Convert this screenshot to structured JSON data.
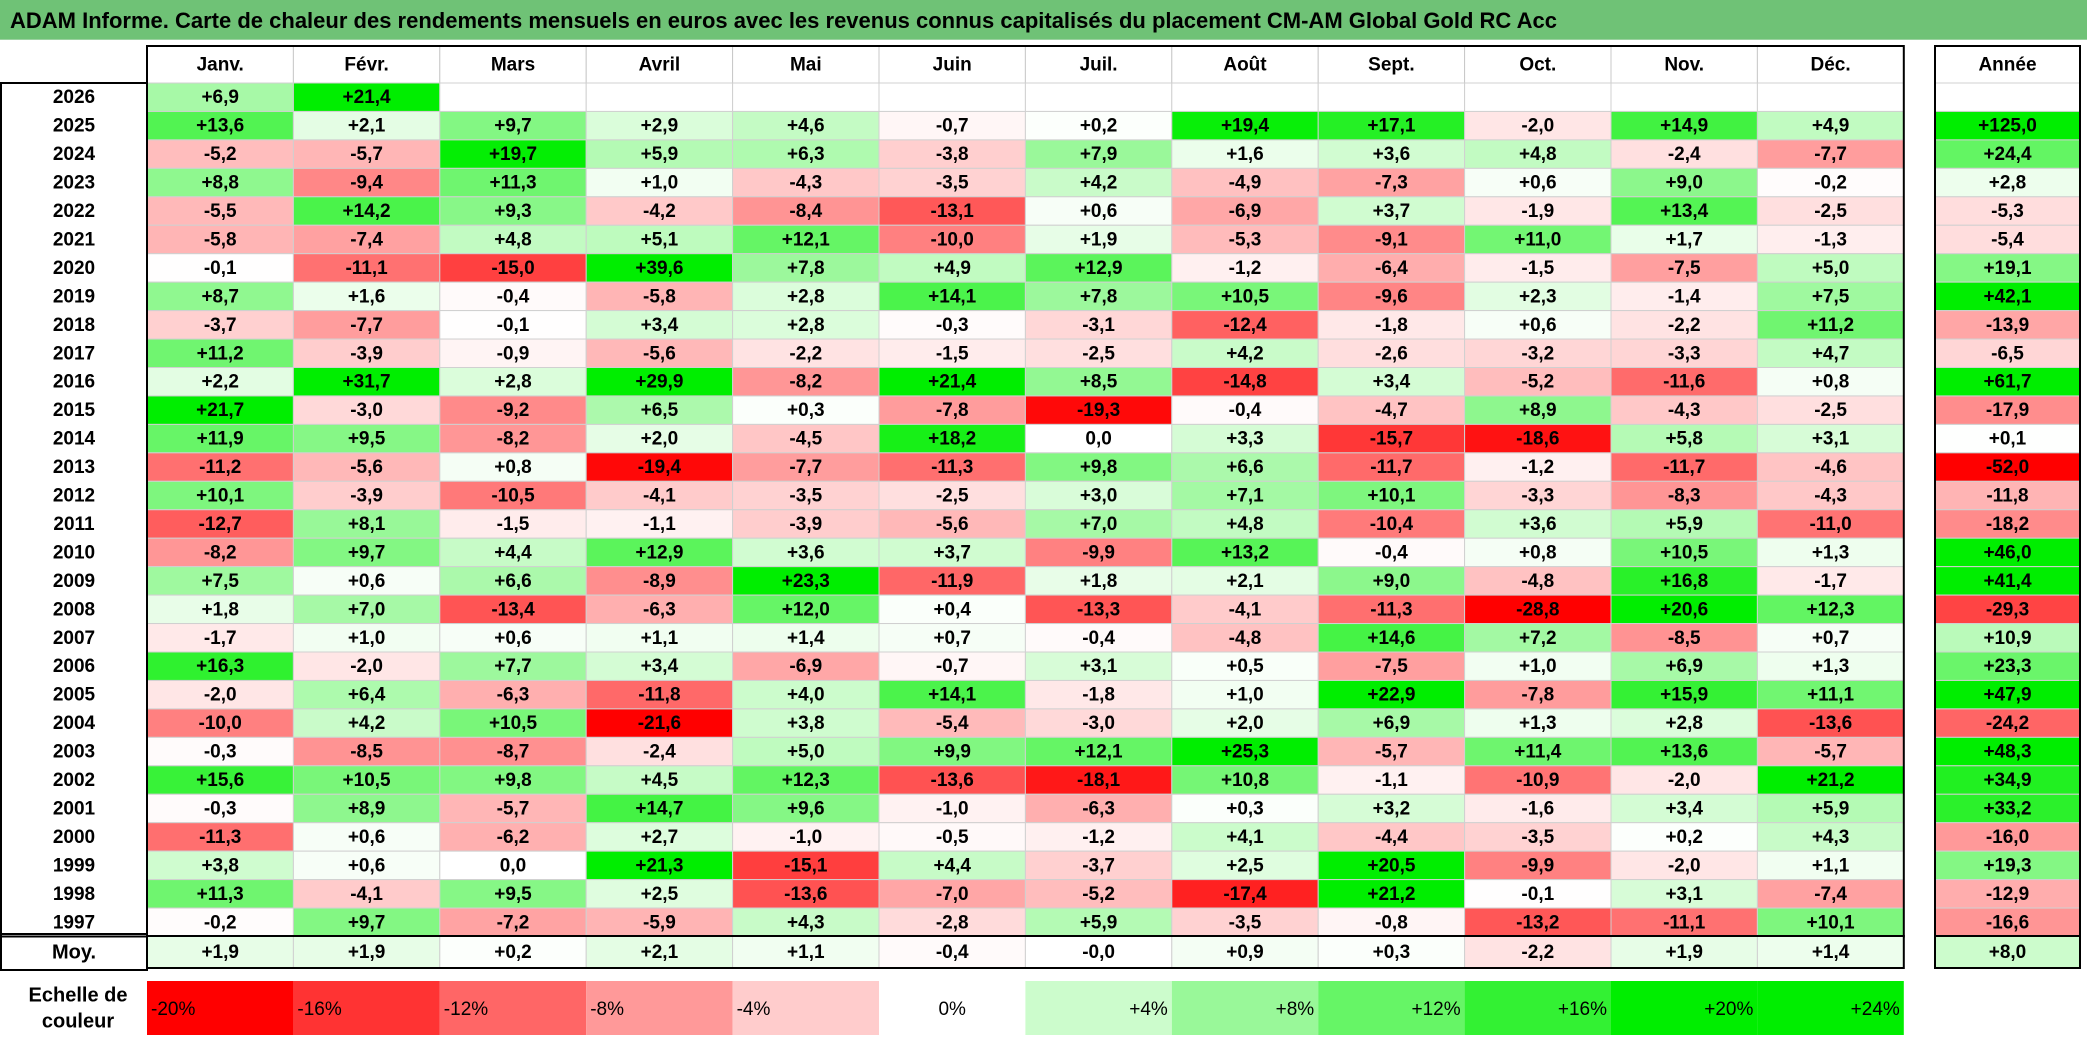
{
  "title": "ADAM Informe. Carte de chaleur des rendements mensuels en euros avec les revenus connus capitalisés du placement CM-AM Global Gold RC Acc",
  "chart_data": {
    "type": "heatmap",
    "months": [
      "Janv.",
      "Févr.",
      "Mars",
      "Avril",
      "Mai",
      "Juin",
      "Juil.",
      "Août",
      "Sept.",
      "Oct.",
      "Nov.",
      "Déc."
    ],
    "year_header": "Année",
    "rows": [
      {
        "year": "2026",
        "values": [
          "+6,9",
          "+21,4",
          "",
          "",
          "",
          "",
          "",
          "",
          "",
          "",
          "",
          ""
        ],
        "annual": ""
      },
      {
        "year": "2025",
        "values": [
          "+13,6",
          "+2,1",
          "+9,7",
          "+2,9",
          "+4,6",
          "-0,7",
          "+0,2",
          "+19,4",
          "+17,1",
          "-2,0",
          "+14,9",
          "+4,9"
        ],
        "annual": "+125,0"
      },
      {
        "year": "2024",
        "values": [
          "-5,2",
          "-5,7",
          "+19,7",
          "+5,9",
          "+6,3",
          "-3,8",
          "+7,9",
          "+1,6",
          "+3,6",
          "+4,8",
          "-2,4",
          "-7,7"
        ],
        "annual": "+24,4"
      },
      {
        "year": "2023",
        "values": [
          "+8,8",
          "-9,4",
          "+11,3",
          "+1,0",
          "-4,3",
          "-3,5",
          "+4,2",
          "-4,9",
          "-7,3",
          "+0,6",
          "+9,0",
          "-0,2"
        ],
        "annual": "+2,8"
      },
      {
        "year": "2022",
        "values": [
          "-5,5",
          "+14,2",
          "+9,3",
          "-4,2",
          "-8,4",
          "-13,1",
          "+0,6",
          "-6,9",
          "+3,7",
          "-1,9",
          "+13,4",
          "-2,5"
        ],
        "annual": "-5,3"
      },
      {
        "year": "2021",
        "values": [
          "-5,8",
          "-7,4",
          "+4,8",
          "+5,1",
          "+12,1",
          "-10,0",
          "+1,9",
          "-5,3",
          "-9,1",
          "+11,0",
          "+1,7",
          "-1,3"
        ],
        "annual": "-5,4"
      },
      {
        "year": "2020",
        "values": [
          "-0,1",
          "-11,1",
          "-15,0",
          "+39,6",
          "+7,8",
          "+4,9",
          "+12,9",
          "-1,2",
          "-6,4",
          "-1,5",
          "-7,5",
          "+5,0"
        ],
        "annual": "+19,1"
      },
      {
        "year": "2019",
        "values": [
          "+8,7",
          "+1,6",
          "-0,4",
          "-5,8",
          "+2,8",
          "+14,1",
          "+7,8",
          "+10,5",
          "-9,6",
          "+2,3",
          "-1,4",
          "+7,5"
        ],
        "annual": "+42,1"
      },
      {
        "year": "2018",
        "values": [
          "-3,7",
          "-7,7",
          "-0,1",
          "+3,4",
          "+2,8",
          "-0,3",
          "-3,1",
          "-12,4",
          "-1,8",
          "+0,6",
          "-2,2",
          "+11,2"
        ],
        "annual": "-13,9"
      },
      {
        "year": "2017",
        "values": [
          "+11,2",
          "-3,9",
          "-0,9",
          "-5,6",
          "-2,2",
          "-1,5",
          "-2,5",
          "+4,2",
          "-2,6",
          "-3,2",
          "-3,3",
          "+4,7"
        ],
        "annual": "-6,5"
      },
      {
        "year": "2016",
        "values": [
          "+2,2",
          "+31,7",
          "+2,8",
          "+29,9",
          "-8,2",
          "+21,4",
          "+8,5",
          "-14,8",
          "+3,4",
          "-5,2",
          "-11,6",
          "+0,8"
        ],
        "annual": "+61,7"
      },
      {
        "year": "2015",
        "values": [
          "+21,7",
          "-3,0",
          "-9,2",
          "+6,5",
          "+0,3",
          "-7,8",
          "-19,3",
          "-0,4",
          "-4,7",
          "+8,9",
          "-4,3",
          "-2,5"
        ],
        "annual": "-17,9"
      },
      {
        "year": "2014",
        "values": [
          "+11,9",
          "+9,5",
          "-8,2",
          "+2,0",
          "-4,5",
          "+18,2",
          "0,0",
          "+3,3",
          "-15,7",
          "-18,6",
          "+5,8",
          "+3,1"
        ],
        "annual": "+0,1"
      },
      {
        "year": "2013",
        "values": [
          "-11,2",
          "-5,6",
          "+0,8",
          "-19,4",
          "-7,7",
          "-11,3",
          "+9,8",
          "+6,6",
          "-11,7",
          "-1,2",
          "-11,7",
          "-4,6"
        ],
        "annual": "-52,0"
      },
      {
        "year": "2012",
        "values": [
          "+10,1",
          "-3,9",
          "-10,5",
          "-4,1",
          "-3,5",
          "-2,5",
          "+3,0",
          "+7,1",
          "+10,1",
          "-3,3",
          "-8,3",
          "-4,3"
        ],
        "annual": "-11,8"
      },
      {
        "year": "2011",
        "values": [
          "-12,7",
          "+8,1",
          "-1,5",
          "-1,1",
          "-3,9",
          "-5,6",
          "+7,0",
          "+4,8",
          "-10,4",
          "+3,6",
          "+5,9",
          "-11,0"
        ],
        "annual": "-18,2"
      },
      {
        "year": "2010",
        "values": [
          "-8,2",
          "+9,7",
          "+4,4",
          "+12,9",
          "+3,6",
          "+3,7",
          "-9,9",
          "+13,2",
          "-0,4",
          "+0,8",
          "+10,5",
          "+1,3"
        ],
        "annual": "+46,0"
      },
      {
        "year": "2009",
        "values": [
          "+7,5",
          "+0,6",
          "+6,6",
          "-8,9",
          "+23,3",
          "-11,9",
          "+1,8",
          "+2,1",
          "+9,0",
          "-4,8",
          "+16,8",
          "-1,7"
        ],
        "annual": "+41,4"
      },
      {
        "year": "2008",
        "values": [
          "+1,8",
          "+7,0",
          "-13,4",
          "-6,3",
          "+12,0",
          "+0,4",
          "-13,3",
          "-4,1",
          "-11,3",
          "-28,8",
          "+20,6",
          "+12,3"
        ],
        "annual": "-29,3"
      },
      {
        "year": "2007",
        "values": [
          "-1,7",
          "+1,0",
          "+0,6",
          "+1,1",
          "+1,4",
          "+0,7",
          "-0,4",
          "-4,8",
          "+14,6",
          "+7,2",
          "-8,5",
          "+0,7"
        ],
        "annual": "+10,9"
      },
      {
        "year": "2006",
        "values": [
          "+16,3",
          "-2,0",
          "+7,7",
          "+3,4",
          "-6,9",
          "-0,7",
          "+3,1",
          "+0,5",
          "-7,5",
          "+1,0",
          "+6,9",
          "+1,3"
        ],
        "annual": "+23,3"
      },
      {
        "year": "2005",
        "values": [
          "-2,0",
          "+6,4",
          "-6,3",
          "-11,8",
          "+4,0",
          "+14,1",
          "-1,8",
          "+1,0",
          "+22,9",
          "-7,8",
          "+15,9",
          "+11,1"
        ],
        "annual": "+47,9"
      },
      {
        "year": "2004",
        "values": [
          "-10,0",
          "+4,2",
          "+10,5",
          "-21,6",
          "+3,8",
          "-5,4",
          "-3,0",
          "+2,0",
          "+6,9",
          "+1,3",
          "+2,8",
          "-13,6"
        ],
        "annual": "-24,2"
      },
      {
        "year": "2003",
        "values": [
          "-0,3",
          "-8,5",
          "-8,7",
          "-2,4",
          "+5,0",
          "+9,9",
          "+12,1",
          "+25,3",
          "-5,7",
          "+11,4",
          "+13,6",
          "-5,7"
        ],
        "annual": "+48,3"
      },
      {
        "year": "2002",
        "values": [
          "+15,6",
          "+10,5",
          "+9,8",
          "+4,5",
          "+12,3",
          "-13,6",
          "-18,1",
          "+10,8",
          "-1,1",
          "-10,9",
          "-2,0",
          "+21,2"
        ],
        "annual": "+34,9"
      },
      {
        "year": "2001",
        "values": [
          "-0,3",
          "+8,9",
          "-5,7",
          "+14,7",
          "+9,6",
          "-1,0",
          "-6,3",
          "+0,3",
          "+3,2",
          "-1,6",
          "+3,4",
          "+5,9"
        ],
        "annual": "+33,2"
      },
      {
        "year": "2000",
        "values": [
          "-11,3",
          "+0,6",
          "-6,2",
          "+2,7",
          "-1,0",
          "-0,5",
          "-1,2",
          "+4,1",
          "-4,4",
          "-3,5",
          "+0,2",
          "+4,3"
        ],
        "annual": "-16,0"
      },
      {
        "year": "1999",
        "values": [
          "+3,8",
          "+0,6",
          "0,0",
          "+21,3",
          "-15,1",
          "+4,4",
          "-3,7",
          "+2,5",
          "+20,5",
          "-9,9",
          "-2,0",
          "+1,1"
        ],
        "annual": "+19,3"
      },
      {
        "year": "1998",
        "values": [
          "+11,3",
          "-4,1",
          "+9,5",
          "+2,5",
          "-13,6",
          "-7,0",
          "-5,2",
          "-17,4",
          "+21,2",
          "-0,1",
          "+3,1",
          "-7,4"
        ],
        "annual": "-12,9"
      },
      {
        "year": "1997",
        "values": [
          "-0,2",
          "+9,7",
          "-7,2",
          "-5,9",
          "+4,3",
          "-2,8",
          "+5,9",
          "-3,5",
          "-0,8",
          "-13,2",
          "-11,1",
          "+10,1"
        ],
        "annual": "-16,6"
      }
    ],
    "average": {
      "label": "Moy.",
      "values": [
        "+1,9",
        "+1,9",
        "+0,2",
        "+2,1",
        "+1,1",
        "-0,4",
        "-0,0",
        "+0,9",
        "+0,3",
        "-2,2",
        "+1,9",
        "+1,4"
      ],
      "annual": "+8,0"
    },
    "scale": {
      "label_line1": "Echelle de",
      "label_line2": "couleur",
      "steps": [
        "-20%",
        "-16%",
        "-12%",
        "-8%",
        "-4%",
        "0%",
        "+4%",
        "+8%",
        "+12%",
        "+16%",
        "+20%",
        "+24%"
      ]
    },
    "colors": {
      "negative": "#ff0000",
      "positive": "#00ee00",
      "neutral": "#ffffff",
      "title_bg": "#6fc276"
    }
  }
}
